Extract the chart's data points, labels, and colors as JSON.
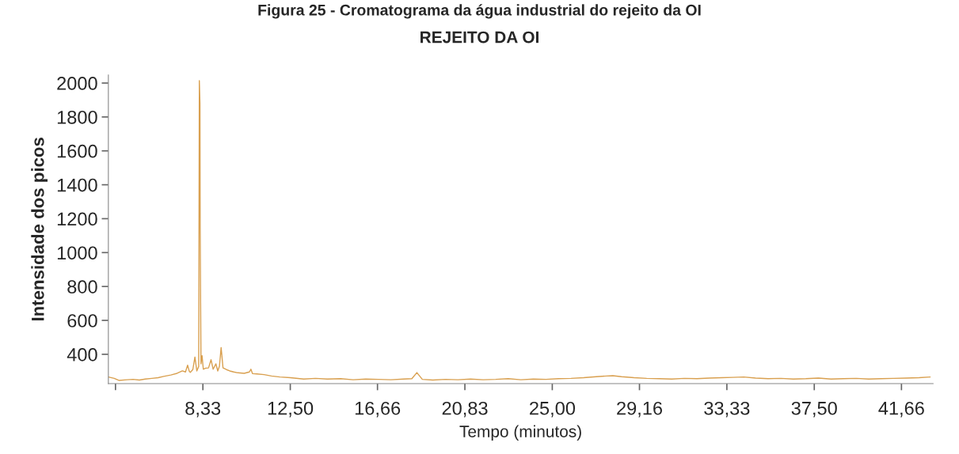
{
  "chart_data": {
    "type": "line",
    "title": "REJEITO DA OI",
    "xlabel": "Tempo (minutos)",
    "ylabel": "Intensidade dos picos",
    "annotations": [
      "Figura 25 - Cromatograma da água industrial do rejeito da OI"
    ],
    "x": [
      3.82,
      4.1,
      4.32,
      4.7,
      5.0,
      5.3,
      5.58,
      5.9,
      6.2,
      6.46,
      6.8,
      7.1,
      7.35,
      7.5,
      7.6,
      7.68,
      7.73,
      7.85,
      7.95,
      8.04,
      8.13,
      8.16,
      8.19,
      8.2,
      8.24,
      8.29,
      8.35,
      8.45,
      8.6,
      8.72,
      8.82,
      8.95,
      9.04,
      9.12,
      9.2,
      9.29,
      9.45,
      9.61,
      9.8,
      9.99,
      10.3,
      10.55,
      10.62,
      10.7,
      10.9,
      11.25,
      11.6,
      12.0,
      12.5,
      13.14,
      13.7,
      14.27,
      14.9,
      15.5,
      16.1,
      16.7,
      17.3,
      17.9,
      18.3,
      18.54,
      18.8,
      19.3,
      19.9,
      20.5,
      21.1,
      21.7,
      22.3,
      22.9,
      23.5,
      24.1,
      24.7,
      25.3,
      25.9,
      26.5,
      27.1,
      27.6,
      27.89,
      28.3,
      28.9,
      29.5,
      30.1,
      30.7,
      31.3,
      31.9,
      32.5,
      33.1,
      33.6,
      34.13,
      34.7,
      35.3,
      35.9,
      36.5,
      37.1,
      37.7,
      38.3,
      38.9,
      39.5,
      40.1,
      40.7,
      41.3,
      41.9,
      42.5,
      43.03
    ],
    "series": [
      {
        "color": "#d9a050",
        "values": [
          266,
          258,
          246,
          250,
          252,
          248,
          254,
          258,
          262,
          270,
          278,
          288,
          302,
          296,
          336,
          300,
          294,
          310,
          384,
          302,
          328,
          2014,
          1880,
          1143,
          344,
          392,
          312,
          318,
          320,
          368,
          312,
          344,
          302,
          330,
          440,
          320,
          310,
          302,
          296,
          291,
          288,
          296,
          312,
          286,
          284,
          280,
          272,
          266,
          262,
          254,
          258,
          254,
          256,
          250,
          254,
          252,
          250,
          254,
          256,
          292,
          252,
          248,
          252,
          250,
          254,
          250,
          252,
          256,
          250,
          254,
          252,
          256,
          258,
          262,
          268,
          272,
          274,
          268,
          262,
          258,
          256,
          254,
          258,
          256,
          260,
          262,
          264,
          266,
          260,
          256,
          258,
          254,
          256,
          260,
          254,
          256,
          258,
          254,
          256,
          258,
          260,
          262,
          266
        ]
      }
    ],
    "xlim": [
      3.82,
      43.17
    ],
    "ylim": [
      227,
      2048
    ],
    "xticks": [
      {
        "value": 4.16,
        "label": null
      },
      {
        "value": 8.33,
        "label": "8,33"
      },
      {
        "value": 12.5,
        "label": "12,50"
      },
      {
        "value": 16.66,
        "label": "16,66"
      },
      {
        "value": 20.83,
        "label": "20,83"
      },
      {
        "value": 25.0,
        "label": "25,00"
      },
      {
        "value": 29.16,
        "label": "29,16"
      },
      {
        "value": 33.33,
        "label": "33,33"
      },
      {
        "value": 37.5,
        "label": "37,50"
      },
      {
        "value": 41.66,
        "label": "41,66"
      }
    ],
    "yticks": [
      400,
      600,
      800,
      1000,
      1200,
      1400,
      1600,
      1800,
      2000
    ],
    "grid": false,
    "marker": "none",
    "line_style": "solid"
  }
}
